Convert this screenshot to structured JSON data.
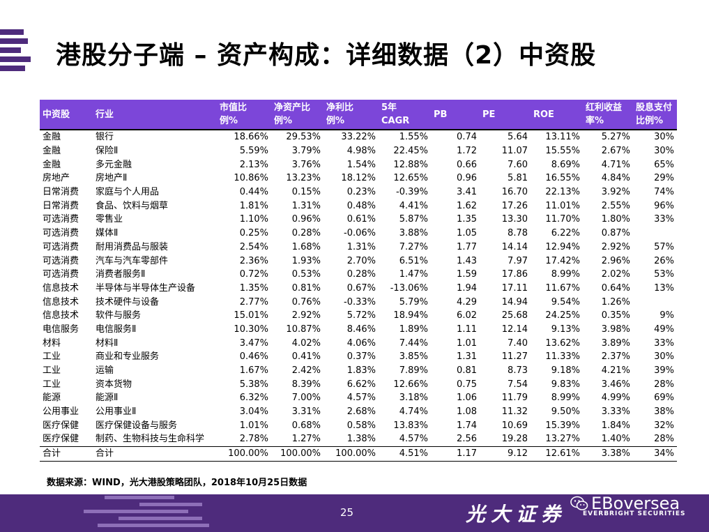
{
  "slide": {
    "title": "港股分子端 – 资产构成：详细数据（2）中资股",
    "source_note": "数据来源：WIND，光大港股策略团队，2018年10月25日数据",
    "page_number": "25"
  },
  "table": {
    "headers": [
      [
        "中资股"
      ],
      [
        "行业"
      ],
      [
        "市值比",
        "例%"
      ],
      [
        "净资产比",
        "例%"
      ],
      [
        "净利比",
        "例%"
      ],
      [
        "5年",
        "CAGR"
      ],
      [
        "PB"
      ],
      [
        "PE"
      ],
      [
        "ROE"
      ],
      [
        "红利收益",
        "率%"
      ],
      [
        "股息支付",
        "比例%"
      ]
    ],
    "rows": [
      [
        "金融",
        "银行",
        "18.66%",
        "29.53%",
        "33.22%",
        "1.55%",
        "0.74",
        "5.64",
        "13.11%",
        "5.27%",
        "30%"
      ],
      [
        "金融",
        "保险Ⅱ",
        "5.59%",
        "3.79%",
        "4.98%",
        "22.45%",
        "1.72",
        "11.07",
        "15.55%",
        "2.67%",
        "30%"
      ],
      [
        "金融",
        "多元金融",
        "2.13%",
        "3.76%",
        "1.54%",
        "12.88%",
        "0.66",
        "7.60",
        "8.69%",
        "4.71%",
        "65%"
      ],
      [
        "房地产",
        "房地产Ⅱ",
        "10.86%",
        "13.23%",
        "18.12%",
        "12.65%",
        "0.96",
        "5.81",
        "16.55%",
        "4.84%",
        "29%"
      ],
      [
        "日常消费",
        "家庭与个人用品",
        "0.44%",
        "0.15%",
        "0.23%",
        "-0.39%",
        "3.41",
        "16.70",
        "22.13%",
        "3.92%",
        "74%"
      ],
      [
        "日常消费",
        "食品、饮料与烟草",
        "1.81%",
        "1.31%",
        "0.48%",
        "4.41%",
        "1.62",
        "17.26",
        "11.01%",
        "2.55%",
        "96%"
      ],
      [
        "可选消费",
        "零售业",
        "1.10%",
        "0.96%",
        "0.61%",
        "5.87%",
        "1.35",
        "13.30",
        "11.70%",
        "1.80%",
        "33%"
      ],
      [
        "可选消费",
        "媒体Ⅱ",
        "0.25%",
        "0.28%",
        "-0.06%",
        "3.88%",
        "1.05",
        "8.78",
        "6.22%",
        "0.87%",
        ""
      ],
      [
        "可选消费",
        "耐用消费品与服装",
        "2.54%",
        "1.68%",
        "1.31%",
        "7.27%",
        "1.77",
        "14.14",
        "12.94%",
        "2.92%",
        "57%"
      ],
      [
        "可选消费",
        "汽车与汽车零部件",
        "2.36%",
        "1.93%",
        "2.70%",
        "6.51%",
        "1.43",
        "7.97",
        "17.42%",
        "2.96%",
        "26%"
      ],
      [
        "可选消费",
        "消费者服务Ⅱ",
        "0.72%",
        "0.53%",
        "0.28%",
        "1.47%",
        "1.59",
        "17.86",
        "8.99%",
        "2.02%",
        "53%"
      ],
      [
        "信息技术",
        "半导体与半导体生产设备",
        "1.35%",
        "0.81%",
        "0.67%",
        "-13.06%",
        "1.94",
        "17.11",
        "11.67%",
        "0.64%",
        "13%"
      ],
      [
        "信息技术",
        "技术硬件与设备",
        "2.77%",
        "0.76%",
        "-0.33%",
        "5.79%",
        "4.29",
        "14.94",
        "9.54%",
        "1.26%",
        ""
      ],
      [
        "信息技术",
        "软件与服务",
        "15.01%",
        "2.92%",
        "5.72%",
        "18.94%",
        "6.02",
        "25.68",
        "24.25%",
        "0.35%",
        "9%"
      ],
      [
        "电信服务",
        "电信服务Ⅱ",
        "10.30%",
        "10.87%",
        "8.46%",
        "1.89%",
        "1.11",
        "12.14",
        "9.13%",
        "3.98%",
        "49%"
      ],
      [
        "材料",
        "材料Ⅱ",
        "3.47%",
        "4.02%",
        "4.06%",
        "7.44%",
        "1.01",
        "7.40",
        "13.62%",
        "3.89%",
        "33%"
      ],
      [
        "工业",
        "商业和专业服务",
        "0.46%",
        "0.41%",
        "0.37%",
        "3.85%",
        "1.31",
        "11.27",
        "11.33%",
        "2.37%",
        "30%"
      ],
      [
        "工业",
        "运输",
        "1.67%",
        "2.42%",
        "1.83%",
        "7.89%",
        "0.81",
        "8.73",
        "9.18%",
        "4.21%",
        "39%"
      ],
      [
        "工业",
        "资本货物",
        "5.38%",
        "8.39%",
        "6.62%",
        "12.66%",
        "0.75",
        "7.54",
        "9.83%",
        "3.46%",
        "28%"
      ],
      [
        "能源",
        "能源Ⅱ",
        "6.32%",
        "7.00%",
        "4.57%",
        "3.18%",
        "1.06",
        "11.79",
        "8.99%",
        "4.99%",
        "69%"
      ],
      [
        "公用事业",
        "公用事业Ⅱ",
        "3.04%",
        "3.31%",
        "2.68%",
        "4.74%",
        "1.08",
        "11.32",
        "9.50%",
        "3.33%",
        "38%"
      ],
      [
        "医疗保健",
        "医疗保健设备与服务",
        "1.01%",
        "0.68%",
        "0.58%",
        "13.83%",
        "1.74",
        "10.69",
        "15.39%",
        "1.84%",
        "32%"
      ],
      [
        "医疗保健",
        "制药、生物科技与生命科学",
        "2.78%",
        "1.27%",
        "1.38%",
        "4.57%",
        "2.56",
        "19.28",
        "13.27%",
        "1.40%",
        "28%"
      ]
    ],
    "total": [
      "合计",
      "合计",
      "100.00%",
      "100.00%",
      "100.00%",
      "4.51%",
      "1.17",
      "9.12",
      "12.61%",
      "3.38%",
      "34%"
    ]
  },
  "footer": {
    "brand_cn": "光大证券",
    "brand_en": "EVERBRIGHT SECURITIES",
    "watermark": "EBoversea",
    "watermark_icon": "wechat-icon"
  },
  "colors": {
    "header_bg": "#7c46d9",
    "footer_bg": "#4e2b7c",
    "accent_stripe": "#8e6fb8"
  }
}
